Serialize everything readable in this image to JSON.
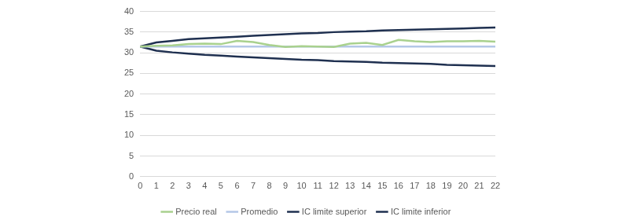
{
  "chart_data": {
    "type": "line",
    "categories": [
      "0",
      "1",
      "2",
      "3",
      "4",
      "5",
      "6",
      "7",
      "8",
      "9",
      "10",
      "11",
      "12",
      "13",
      "14",
      "15",
      "16",
      "17",
      "18",
      "19",
      "20",
      "21",
      "22"
    ],
    "ylim": [
      0,
      40
    ],
    "yticks": [
      0,
      5,
      10,
      15,
      20,
      25,
      30,
      35,
      40
    ],
    "grid": true,
    "legend": "bottom",
    "marker": "none",
    "series": [
      {
        "name": "Precio real",
        "color": "#a9d18e",
        "values": [
          31.5,
          31.7,
          31.8,
          32.1,
          32.2,
          32.1,
          32.9,
          32.6,
          31.9,
          31.4,
          31.6,
          31.5,
          31.4,
          32.2,
          32.4,
          31.9,
          33.1,
          32.8,
          32.6,
          32.8,
          32.8,
          32.9,
          32.7
        ]
      },
      {
        "name": "Promedio",
        "color": "#b4c7e7",
        "values": [
          31.5,
          31.5,
          31.5,
          31.5,
          31.5,
          31.5,
          31.5,
          31.5,
          31.5,
          31.5,
          31.5,
          31.5,
          31.5,
          31.5,
          31.5,
          31.5,
          31.5,
          31.5,
          31.5,
          31.5,
          31.5,
          31.5,
          31.5
        ]
      },
      {
        "name": "IC limite superior",
        "color": "#1f3050",
        "values": [
          31.5,
          32.5,
          32.9,
          33.3,
          33.5,
          33.7,
          33.9,
          34.1,
          34.3,
          34.5,
          34.7,
          34.8,
          35.0,
          35.1,
          35.2,
          35.4,
          35.5,
          35.6,
          35.7,
          35.8,
          35.9,
          36.0,
          36.1
        ]
      },
      {
        "name": "IC limite inferior",
        "color": "#1f3050",
        "values": [
          31.5,
          30.5,
          30.1,
          29.8,
          29.5,
          29.3,
          29.1,
          28.9,
          28.7,
          28.5,
          28.3,
          28.2,
          28.0,
          27.9,
          27.8,
          27.6,
          27.5,
          27.4,
          27.3,
          27.1,
          27.0,
          26.9,
          26.8
        ]
      }
    ]
  }
}
